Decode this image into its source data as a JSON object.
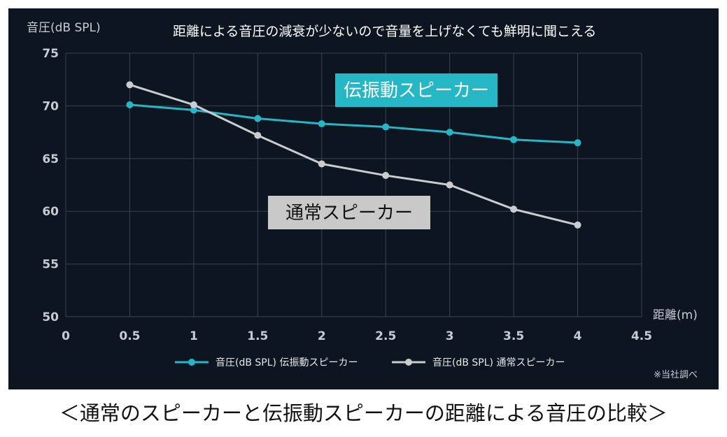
{
  "headline": "距離による音圧の減衰が少ないので音量を上げなくても鮮明に聞こえる",
  "caption": "＜通常のスピーカーと伝振動スピーカーの距離による音圧の比較＞",
  "note": "※当社調べ",
  "colors": {
    "background": "#0d1520",
    "grid": "#3a4450",
    "series_conduction": "#25b7c6",
    "series_normal": "#c9ccd1",
    "callout_conduction_bg": "#25b7c6",
    "callout_normal_bg": "#c9c9c9"
  },
  "callouts": {
    "conduction": "伝振動スピーカー",
    "normal": "通常スピーカー"
  },
  "chart_data": {
    "type": "line",
    "ylabel": "音圧(dB SPL)",
    "xlabel": "距離(m)",
    "xlim": [
      0,
      4.5
    ],
    "ylim": [
      50,
      75
    ],
    "xticks": [
      "0",
      "0.5",
      "1",
      "1.5",
      "2",
      "2.5",
      "3",
      "3.5",
      "4",
      "4.5"
    ],
    "yticks": [
      "50",
      "55",
      "60",
      "65",
      "70",
      "75"
    ],
    "grid": true,
    "legend_position": "bottom",
    "x": [
      0.5,
      1,
      1.5,
      2,
      2.5,
      3,
      3.5,
      4
    ],
    "series": [
      {
        "name": "音圧(dB SPL) 伝振動スピーカー",
        "values": [
          70.1,
          69.6,
          68.8,
          68.3,
          68.0,
          67.5,
          66.8,
          66.5
        ]
      },
      {
        "name": "音圧(dB SPL) 通常スピーカー",
        "values": [
          72.0,
          70.1,
          67.2,
          64.5,
          63.4,
          62.5,
          60.2,
          58.7
        ]
      }
    ]
  }
}
